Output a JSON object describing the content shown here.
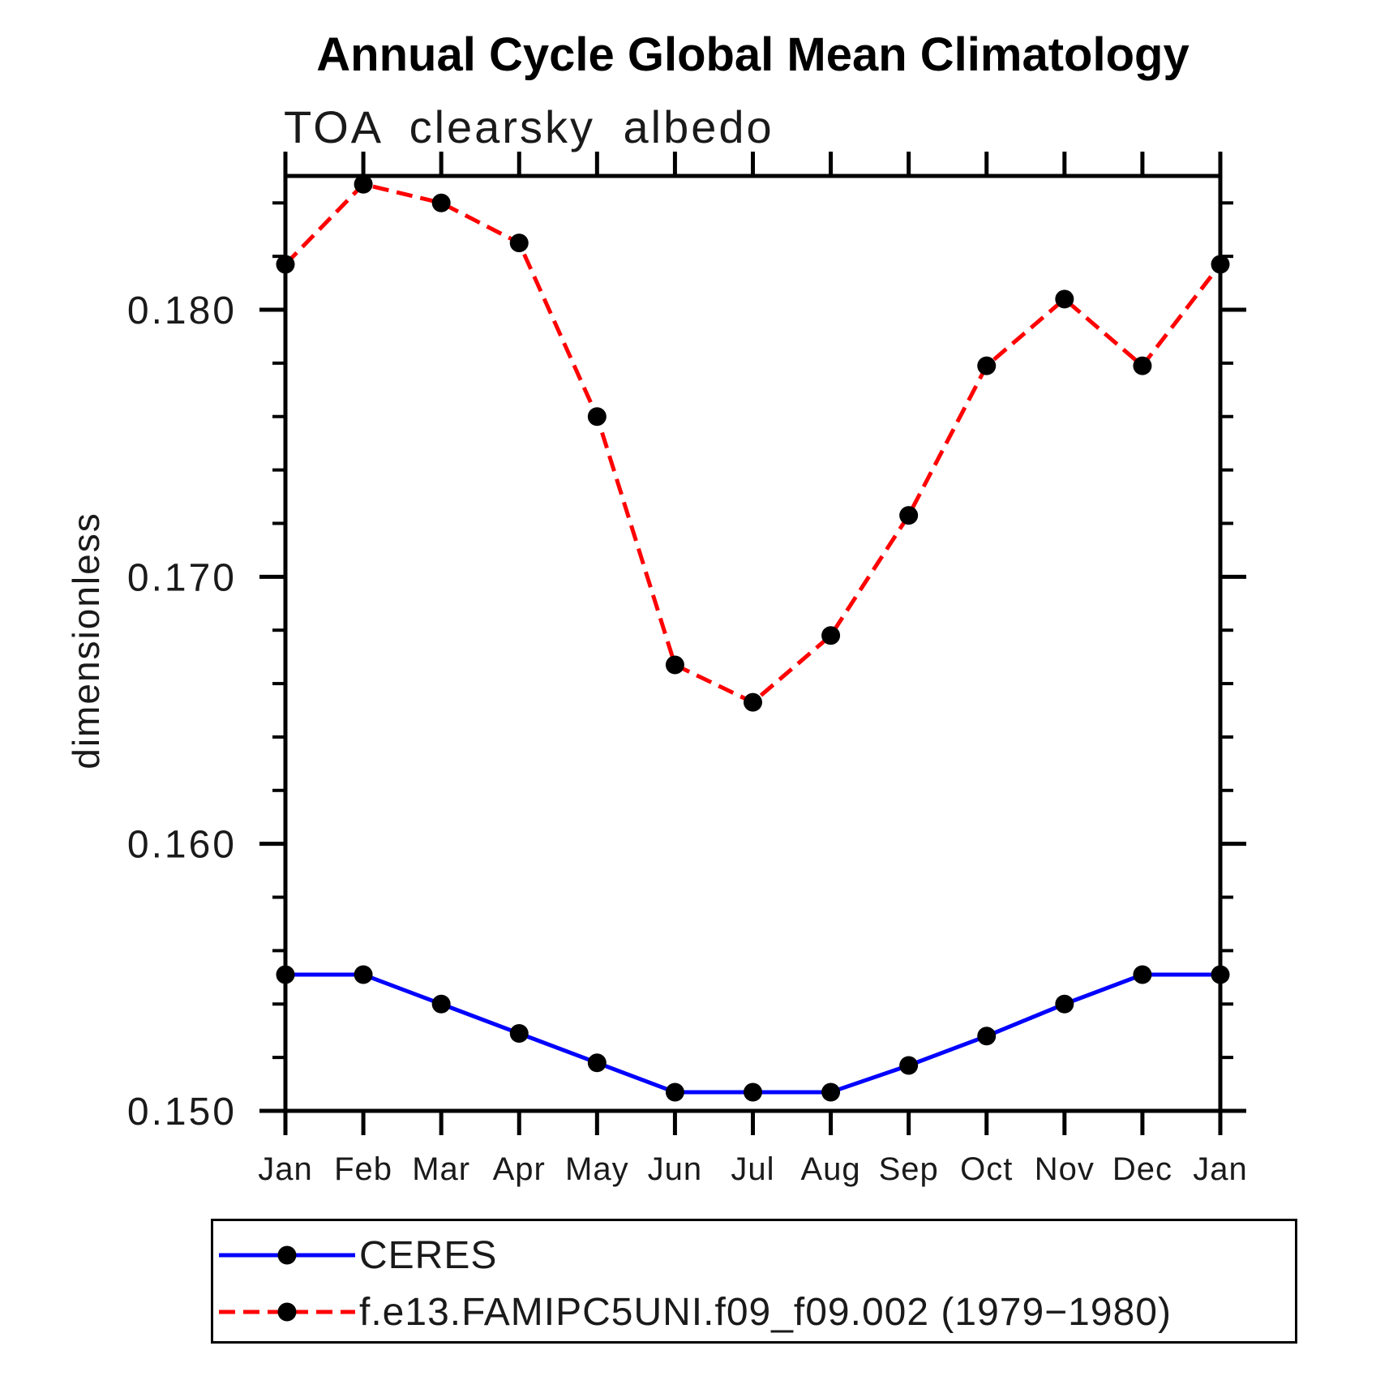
{
  "title": "Annual Cycle Global Mean Climatology",
  "subtitle": "TOA clearsky albedo",
  "ylabel": "dimensionless",
  "chart_data": {
    "type": "line",
    "categories": [
      "Jan",
      "Feb",
      "Mar",
      "Apr",
      "May",
      "Jun",
      "Jul",
      "Aug",
      "Sep",
      "Oct",
      "Nov",
      "Dec",
      "Jan"
    ],
    "series": [
      {
        "name": "CERES",
        "color": "#0000ff",
        "line_style": "solid",
        "marker": "filled-circle",
        "marker_color": "#000000",
        "values": [
          0.1551,
          0.1551,
          0.154,
          0.1529,
          0.1518,
          0.1507,
          0.1507,
          0.1507,
          0.1517,
          0.1528,
          0.154,
          0.1551,
          0.1551
        ]
      },
      {
        "name": "f.e13.FAMIPC5UNI.f09_f09.002 (1979−1980)",
        "color": "#ff0000",
        "line_style": "dashed",
        "marker": "filled-circle",
        "marker_color": "#000000",
        "values": [
          0.1817,
          0.1847,
          0.184,
          0.1825,
          0.176,
          0.1667,
          0.1653,
          0.1678,
          0.1723,
          0.1779,
          0.1804,
          0.1779,
          0.1817
        ]
      }
    ],
    "xlabel": "",
    "ylabel": "dimensionless",
    "ylim": [
      0.15,
      0.18501
    ],
    "yticks_major": [
      0.15,
      0.16,
      0.17,
      0.18
    ],
    "ytick_labels": [
      "0.150",
      "0.160",
      "0.170",
      "0.180"
    ],
    "ytick_minor_step": 0.002,
    "grid": false,
    "legend_position": "bottom-left-box",
    "frame_ticks": "all-sides-outward"
  },
  "legend": {
    "items": [
      {
        "label": "CERES"
      },
      {
        "label": "f.e13.FAMIPC5UNI.f09_f09.002 (1979−1980)"
      }
    ]
  }
}
